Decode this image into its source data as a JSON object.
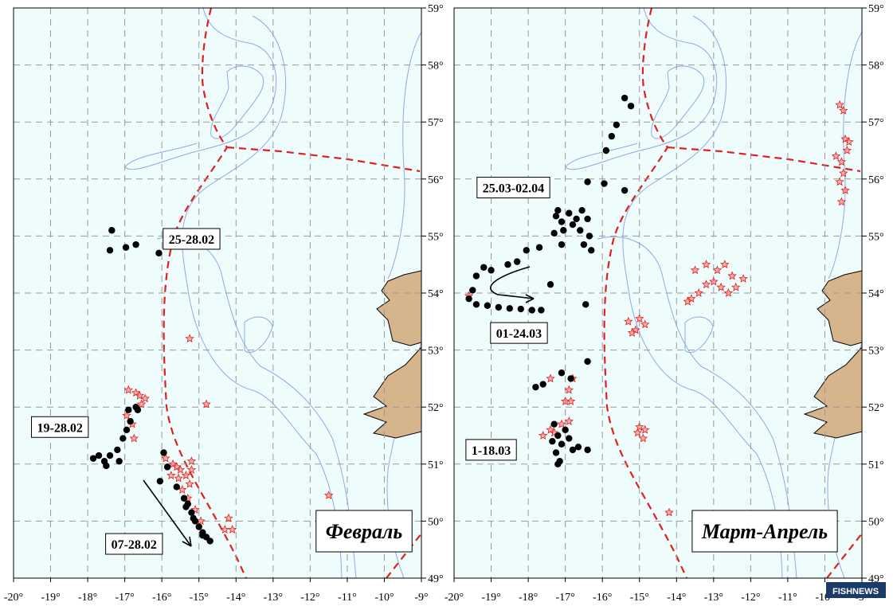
{
  "map": {
    "xlim": [
      -20,
      -9
    ],
    "ylim": [
      49,
      59
    ],
    "lon_ticks": [
      {
        "value": -20,
        "label": "-20°"
      },
      {
        "value": -19,
        "label": "-19°"
      },
      {
        "value": -18,
        "label": "-18°"
      },
      {
        "value": -17,
        "label": "-17°"
      },
      {
        "value": -16,
        "label": "-16°"
      },
      {
        "value": -15,
        "label": "-15°"
      },
      {
        "value": -14,
        "label": "-14°"
      },
      {
        "value": -13,
        "label": "-13°"
      },
      {
        "value": -12,
        "label": "-12°"
      },
      {
        "value": -11,
        "label": "-11°"
      },
      {
        "value": -10,
        "label": "-10°"
      },
      {
        "value": -9,
        "label": "-9°"
      }
    ],
    "lat_ticks": [
      {
        "value": 49,
        "label": "49°"
      },
      {
        "value": 50,
        "label": "50°"
      },
      {
        "value": 51,
        "label": "51°"
      },
      {
        "value": 52,
        "label": "52°"
      },
      {
        "value": 53,
        "label": "53°"
      },
      {
        "value": 54,
        "label": "54°"
      },
      {
        "value": 55,
        "label": "55°"
      },
      {
        "value": 56,
        "label": "56°"
      },
      {
        "value": 57,
        "label": "57°"
      },
      {
        "value": 58,
        "label": "58°"
      },
      {
        "value": 59,
        "label": "59°"
      }
    ],
    "panels": [
      {
        "title": "Февраль",
        "labels": [
          {
            "text": "25-28.02",
            "lon": -15.2,
            "lat": 54.95
          },
          {
            "text": "19-28.02",
            "lon": -18.75,
            "lat": 51.65
          },
          {
            "text": "07-28.02",
            "lon": -16.75,
            "lat": 49.6
          }
        ],
        "black_points": [
          [
            -17.35,
            55.1
          ],
          [
            -17.4,
            54.75
          ],
          [
            -16.97,
            54.8
          ],
          [
            -16.7,
            54.85
          ],
          [
            -16.08,
            54.7
          ],
          [
            -17.85,
            51.1
          ],
          [
            -17.7,
            51.15
          ],
          [
            -17.55,
            51.05
          ],
          [
            -17.5,
            50.97
          ],
          [
            -17.4,
            51.15
          ],
          [
            -17.2,
            51.25
          ],
          [
            -17.15,
            51.05
          ],
          [
            -17.05,
            51.45
          ],
          [
            -16.95,
            51.6
          ],
          [
            -16.85,
            51.75
          ],
          [
            -16.9,
            51.95
          ],
          [
            -16.7,
            52.0
          ],
          [
            -16.65,
            51.95
          ],
          [
            -15.95,
            51.2
          ],
          [
            -15.85,
            50.95
          ],
          [
            -16.05,
            50.7
          ],
          [
            -15.6,
            50.6
          ],
          [
            -15.4,
            50.4
          ],
          [
            -15.3,
            50.3
          ],
          [
            -15.2,
            50.15
          ],
          [
            -15.1,
            50.0
          ],
          [
            -15.0,
            49.9
          ],
          [
            -14.9,
            49.8
          ],
          [
            -14.8,
            49.72
          ],
          [
            -14.7,
            49.65
          ],
          [
            -14.9,
            49.75
          ],
          [
            -15.15,
            50.05
          ],
          [
            -15.35,
            50.25
          ]
        ],
        "red_points": [
          [
            -16.7,
            52.25
          ],
          [
            -16.6,
            52.2
          ],
          [
            -16.45,
            52.15
          ],
          [
            -16.9,
            52.3
          ],
          [
            -16.95,
            51.85
          ],
          [
            -16.8,
            51.7
          ],
          [
            -16.55,
            52.05
          ],
          [
            -16.75,
            51.45
          ],
          [
            -15.25,
            53.2
          ],
          [
            -14.8,
            52.05
          ],
          [
            -11.5,
            50.45
          ],
          [
            -14.2,
            50.05
          ],
          [
            -14.3,
            49.85
          ],
          [
            -14.1,
            49.85
          ],
          [
            -15.9,
            51.1
          ],
          [
            -15.7,
            51.0
          ],
          [
            -15.5,
            50.9
          ],
          [
            -15.35,
            50.8
          ],
          [
            -15.55,
            50.75
          ],
          [
            -15.25,
            50.65
          ],
          [
            -15.45,
            50.55
          ],
          [
            -15.6,
            50.95
          ],
          [
            -15.2,
            50.9
          ],
          [
            -15.3,
            50.4
          ],
          [
            -15.1,
            50.2
          ],
          [
            -14.95,
            50.0
          ],
          [
            -15.2,
            51.05
          ],
          [
            -15.75,
            50.8
          ]
        ]
      },
      {
        "title": "Март-Апрель",
        "labels": [
          {
            "text": "25.03-02.04",
            "lon": -18.4,
            "lat": 55.85
          },
          {
            "text": "01-24.03",
            "lon": -18.25,
            "lat": 53.3
          },
          {
            "text": "1-18.03",
            "lon": -19.0,
            "lat": 51.25
          }
        ],
        "black_points": [
          [
            -15.4,
            57.42
          ],
          [
            -15.23,
            57.28
          ],
          [
            -15.62,
            56.95
          ],
          [
            -15.75,
            56.75
          ],
          [
            -15.9,
            56.5
          ],
          [
            -15.95,
            55.92
          ],
          [
            -16.4,
            55.95
          ],
          [
            -15.4,
            55.8
          ],
          [
            -17.25,
            55.35
          ],
          [
            -17.1,
            55.25
          ],
          [
            -16.9,
            55.4
          ],
          [
            -16.7,
            55.3
          ],
          [
            -16.55,
            55.45
          ],
          [
            -16.4,
            55.3
          ],
          [
            -17.3,
            55.05
          ],
          [
            -17.05,
            55.1
          ],
          [
            -16.8,
            55.2
          ],
          [
            -17.2,
            55.45
          ],
          [
            -16.6,
            55.1
          ],
          [
            -16.35,
            55.0
          ],
          [
            -16.5,
            54.85
          ],
          [
            -16.3,
            54.75
          ],
          [
            -17.1,
            54.85
          ],
          [
            -17.7,
            54.8
          ],
          [
            -18.05,
            54.75
          ],
          [
            -18.3,
            54.55
          ],
          [
            -18.55,
            54.5
          ],
          [
            -19.0,
            54.4
          ],
          [
            -19.2,
            54.45
          ],
          [
            -19.4,
            54.3
          ],
          [
            -19.5,
            54.05
          ],
          [
            -19.6,
            53.9
          ],
          [
            -19.4,
            53.8
          ],
          [
            -19.1,
            53.78
          ],
          [
            -18.8,
            53.75
          ],
          [
            -18.5,
            53.73
          ],
          [
            -18.2,
            53.72
          ],
          [
            -17.9,
            53.7
          ],
          [
            -17.65,
            53.7
          ],
          [
            -17.4,
            54.15
          ],
          [
            -16.45,
            53.8
          ],
          [
            -16.4,
            52.8
          ],
          [
            -17.8,
            52.35
          ],
          [
            -17.6,
            52.4
          ],
          [
            -17.1,
            52.6
          ],
          [
            -16.85,
            52.5
          ],
          [
            -17.3,
            51.7
          ],
          [
            -17.2,
            51.5
          ],
          [
            -17.1,
            51.35
          ],
          [
            -17.35,
            51.4
          ],
          [
            -17.0,
            51.6
          ],
          [
            -17.25,
            51.2
          ],
          [
            -17.15,
            51.05
          ],
          [
            -17.2,
            51.0
          ],
          [
            -16.8,
            51.25
          ],
          [
            -16.65,
            51.3
          ],
          [
            -16.4,
            51.25
          ],
          [
            -16.9,
            51.45
          ]
        ],
        "red_points": [
          [
            -17.3,
            51.55
          ],
          [
            -17.1,
            51.7
          ],
          [
            -17.4,
            51.6
          ],
          [
            -16.9,
            51.75
          ],
          [
            -16.85,
            52.1
          ],
          [
            -17.0,
            52.1
          ],
          [
            -17.4,
            52.5
          ],
          [
            -16.8,
            52.5
          ],
          [
            -17.6,
            51.5
          ],
          [
            -16.9,
            52.3
          ],
          [
            -15.05,
            51.55
          ],
          [
            -14.9,
            51.45
          ],
          [
            -15.0,
            51.65
          ],
          [
            -14.85,
            51.6
          ],
          [
            -15.3,
            53.5
          ],
          [
            -15.0,
            53.55
          ],
          [
            -14.85,
            53.45
          ],
          [
            -15.1,
            53.35
          ],
          [
            -15.2,
            53.3
          ],
          [
            -14.2,
            50.15
          ],
          [
            -19.6,
            53.95
          ],
          [
            -13.6,
            53.9
          ],
          [
            -13.4,
            54.0
          ],
          [
            -13.2,
            54.15
          ],
          [
            -13.0,
            54.2
          ],
          [
            -12.8,
            54.1
          ],
          [
            -12.6,
            54.0
          ],
          [
            -12.4,
            54.1
          ],
          [
            -12.2,
            54.25
          ],
          [
            -13.5,
            54.4
          ],
          [
            -13.2,
            54.5
          ],
          [
            -12.9,
            54.4
          ],
          [
            -12.7,
            54.5
          ],
          [
            -12.5,
            54.3
          ],
          [
            -13.7,
            53.85
          ],
          [
            -9.6,
            57.3
          ],
          [
            -9.5,
            57.2
          ],
          [
            -9.45,
            56.7
          ],
          [
            -9.35,
            56.65
          ],
          [
            -9.7,
            56.4
          ],
          [
            -9.55,
            56.3
          ],
          [
            -9.5,
            56.1
          ],
          [
            -9.6,
            55.95
          ],
          [
            -9.45,
            55.8
          ],
          [
            -9.55,
            55.6
          ],
          [
            -9.4,
            56.5
          ]
        ]
      }
    ]
  },
  "watermark": "FISHNEWS"
}
